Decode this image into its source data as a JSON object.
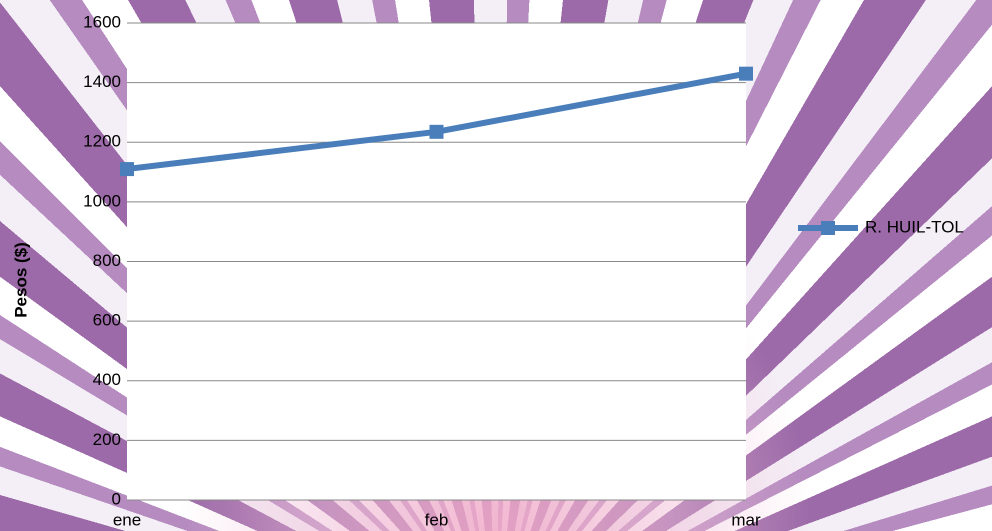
{
  "chart_data": {
    "type": "line",
    "categories": [
      "ene",
      "feb",
      "mar"
    ],
    "series": [
      {
        "name": "R. HUIL-TOL",
        "color": "#4a7ebb",
        "values": [
          1110,
          1235,
          1430
        ]
      }
    ],
    "y_label": "Pesos ($)",
    "ylim": [
      0,
      1600
    ],
    "yticks": [
      0,
      200,
      400,
      600,
      800,
      1000,
      1200,
      1400,
      1600
    ],
    "grid": true,
    "legend": "right"
  }
}
